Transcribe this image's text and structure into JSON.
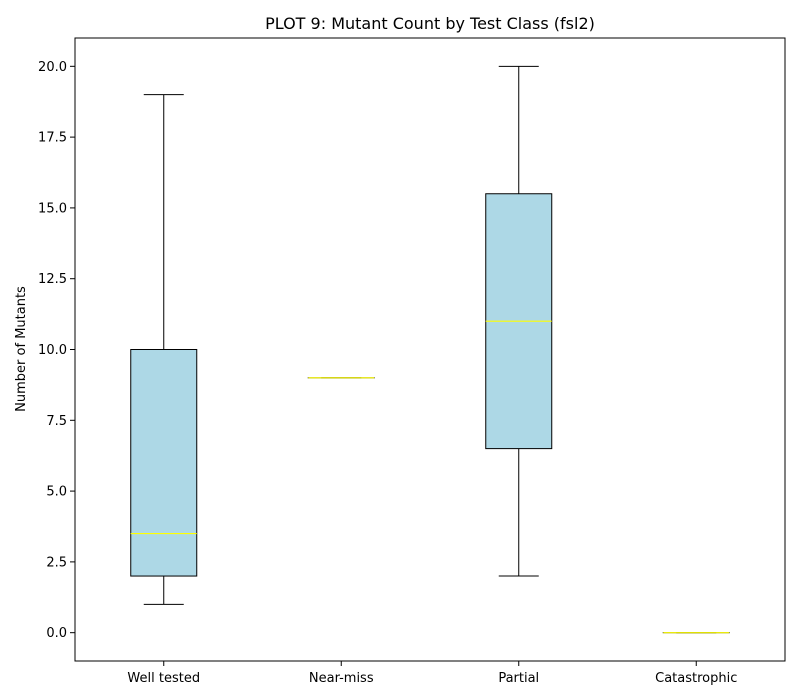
{
  "chart_data": {
    "type": "box",
    "title": "PLOT 9: Mutant Count by Test Class (fsl2)",
    "xlabel": "",
    "ylabel": "Number of Mutants",
    "ylim": [
      -1,
      21
    ],
    "yticks": [
      0.0,
      2.5,
      5.0,
      7.5,
      10.0,
      12.5,
      15.0,
      17.5,
      20.0
    ],
    "ytick_labels": [
      "0.0",
      "2.5",
      "5.0",
      "7.5",
      "10.0",
      "12.5",
      "15.0",
      "17.5",
      "20.0"
    ],
    "categories": [
      "Well tested",
      "Near-miss",
      "Partial",
      "Catastrophic"
    ],
    "boxes": [
      {
        "category": "Well tested",
        "whisker_low": 1,
        "q1": 2,
        "median": 3.5,
        "q3": 10,
        "whisker_high": 19
      },
      {
        "category": "Near-miss",
        "whisker_low": 9,
        "q1": 9,
        "median": 9,
        "q3": 9,
        "whisker_high": 9
      },
      {
        "category": "Partial",
        "whisker_low": 2,
        "q1": 6.5,
        "median": 11,
        "q3": 15.5,
        "whisker_high": 20
      },
      {
        "category": "Catastrophic",
        "whisker_low": 0,
        "q1": 0,
        "median": 0,
        "q3": 0,
        "whisker_high": 0
      }
    ],
    "grid": false,
    "legend": "none",
    "colors": {
      "box_fill": "#add8e6",
      "box_edge": "#000000",
      "median": "#ffff00",
      "whisker": "#000000"
    }
  }
}
